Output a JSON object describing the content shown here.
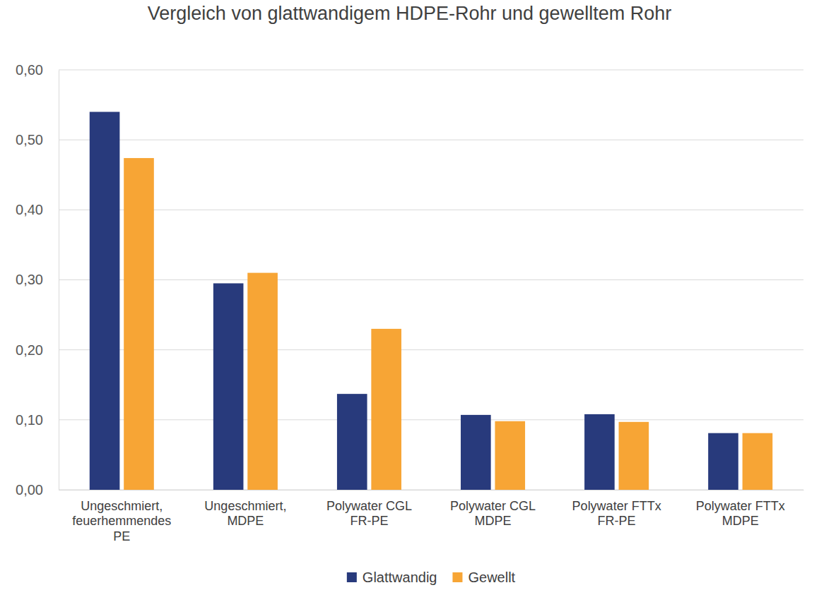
{
  "chart_data": {
    "type": "bar",
    "title": "Vergleich von glattwandigem HDPE-Rohr und gewelltem Rohr",
    "categories": [
      "Ungeschmiert, feuerhemmendes PE",
      "Ungeschmiert, MDPE",
      "Polywater CGL FR-PE",
      "Polywater CGL MDPE",
      "Polywater FTTx FR-PE",
      "Polywater FTTx MDPE"
    ],
    "series": [
      {
        "name": "Glattwandig",
        "color": "#283a7c",
        "values": [
          0.54,
          0.295,
          0.137,
          0.107,
          0.108,
          0.081
        ]
      },
      {
        "name": "Gewellt",
        "color": "#f7a535",
        "values": [
          0.474,
          0.31,
          0.23,
          0.098,
          0.097,
          0.081
        ]
      }
    ],
    "ylim": [
      0,
      0.6
    ],
    "yticks": [
      {
        "value": 0,
        "label": "0,00"
      },
      {
        "value": 0.1,
        "label": "0,10"
      },
      {
        "value": 0.2,
        "label": "0,20"
      },
      {
        "value": 0.3,
        "label": "0,30"
      },
      {
        "value": 0.4,
        "label": "0,40"
      },
      {
        "value": 0.5,
        "label": "0,50"
      },
      {
        "value": 0.6,
        "label": "0,60"
      }
    ],
    "grid": true,
    "legend": "bottom"
  }
}
